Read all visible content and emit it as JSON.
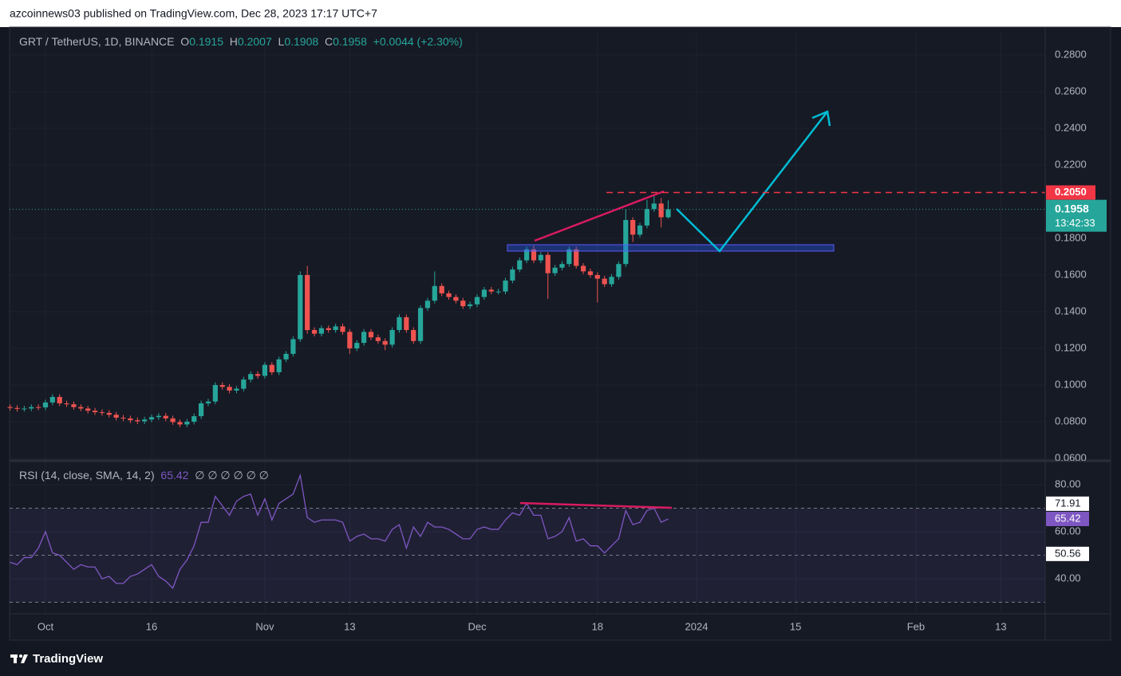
{
  "header": {
    "text": "azcoinnews03 published on TradingView.com, Dec 28, 2023 17:17 UTC+7"
  },
  "footer": {
    "brand": "TradingView"
  },
  "chart_data": [
    {
      "type": "candlestick",
      "title": "GRT / TetherUS, 1D, BINANCE",
      "legend_labels": [
        "O",
        "H",
        "L",
        "C"
      ],
      "change": "+0.0044 (+2.30%)",
      "up_color": "#26a69a",
      "down_color": "#ef5350",
      "grid": true,
      "xlim": [
        -0.07,
        146.27
      ],
      "xticks": [
        {
          "value": 5,
          "label": "Oct"
        },
        {
          "value": 20,
          "label": "16"
        },
        {
          "value": 36,
          "label": "Nov"
        },
        {
          "value": 48,
          "label": "13"
        },
        {
          "value": 66,
          "label": "Dec"
        },
        {
          "value": 83,
          "label": "18"
        },
        {
          "value": 97,
          "label": "2024"
        },
        {
          "value": 111,
          "label": "15"
        },
        {
          "value": 128,
          "label": "Feb"
        },
        {
          "value": 140,
          "label": "13"
        }
      ],
      "ylim": [
        0.0587,
        0.2926
      ],
      "yticks": [
        {
          "value": 0.28,
          "label": "0.2800"
        },
        {
          "value": 0.26,
          "label": "0.2600"
        },
        {
          "value": 0.24,
          "label": "0.2400"
        },
        {
          "value": 0.22,
          "label": "0.2200"
        },
        {
          "value": 0.18,
          "label": "0.1800"
        },
        {
          "value": 0.16,
          "label": "0.1600"
        },
        {
          "value": 0.14,
          "label": "0.1400"
        },
        {
          "value": 0.12,
          "label": "0.1200"
        },
        {
          "value": 0.1,
          "label": "0.1000"
        },
        {
          "value": 0.08,
          "label": "0.0800"
        },
        {
          "value": 0.06,
          "label": "0.0600"
        }
      ],
      "resistance": {
        "value": 0.205,
        "label": "0.2050"
      },
      "countdown": "13:42:33",
      "open": [
        0.088,
        0.0875,
        0.087,
        0.0872,
        0.088,
        0.0878,
        0.0905,
        0.0935,
        0.09,
        0.0895,
        0.088,
        0.0872,
        0.086,
        0.0852,
        0.0848,
        0.0838,
        0.0822,
        0.0818,
        0.0808,
        0.0802,
        0.0812,
        0.0825,
        0.0832,
        0.0818,
        0.0798,
        0.0785,
        0.08,
        0.083,
        0.09,
        0.091,
        0.1,
        0.099,
        0.097,
        0.098,
        0.103,
        0.106,
        0.105,
        0.111,
        0.107,
        0.114,
        0.117,
        0.125,
        0.16,
        0.13,
        0.128,
        0.131,
        0.13,
        0.132,
        0.129,
        0.12,
        0.123,
        0.129,
        0.126,
        0.124,
        0.122,
        0.13,
        0.137,
        0.13,
        0.124,
        0.142,
        0.146,
        0.154,
        0.15,
        0.148,
        0.146,
        0.143,
        0.144,
        0.148,
        0.152,
        0.151,
        0.151,
        0.157,
        0.163,
        0.168,
        0.174,
        0.168,
        0.171,
        0.161,
        0.164,
        0.166,
        0.174,
        0.165,
        0.162,
        0.16,
        0.158,
        0.155,
        0.159,
        0.166,
        0.19,
        0.182,
        0.187,
        0.196,
        0.199,
        0.1915
      ],
      "high": [
        0.0895,
        0.089,
        0.0887,
        0.0895,
        0.0895,
        0.092,
        0.095,
        0.095,
        0.0915,
        0.091,
        0.0895,
        0.0887,
        0.0875,
        0.0867,
        0.0863,
        0.0853,
        0.0837,
        0.0833,
        0.0823,
        0.0827,
        0.084,
        0.0847,
        0.0847,
        0.0833,
        0.0813,
        0.0815,
        0.0845,
        0.0915,
        0.0925,
        0.1015,
        0.1015,
        0.1005,
        0.0995,
        0.1045,
        0.1075,
        0.1075,
        0.1125,
        0.1125,
        0.1155,
        0.1185,
        0.1265,
        0.162,
        0.165,
        0.1315,
        0.1325,
        0.1325,
        0.1335,
        0.1335,
        0.1305,
        0.1245,
        0.1305,
        0.1305,
        0.1275,
        0.1255,
        0.1315,
        0.1385,
        0.1385,
        0.1315,
        0.1435,
        0.1475,
        0.162,
        0.1555,
        0.1515,
        0.1495,
        0.1475,
        0.1455,
        0.1495,
        0.1535,
        0.1535,
        0.1525,
        0.1585,
        0.1645,
        0.1695,
        0.1755,
        0.176,
        0.1725,
        0.1725,
        0.1655,
        0.1675,
        0.1755,
        0.1755,
        0.1665,
        0.1635,
        0.1615,
        0.1595,
        0.1605,
        0.1675,
        0.196,
        0.1915,
        0.1885,
        0.201,
        0.204,
        0.202,
        0.2007
      ],
      "low": [
        0.086,
        0.0855,
        0.0855,
        0.0857,
        0.0863,
        0.0863,
        0.089,
        0.0885,
        0.088,
        0.0865,
        0.0857,
        0.0845,
        0.0837,
        0.0833,
        0.0823,
        0.0807,
        0.0803,
        0.0793,
        0.0787,
        0.0787,
        0.0797,
        0.081,
        0.0803,
        0.0783,
        0.077,
        0.077,
        0.0785,
        0.0815,
        0.0885,
        0.0895,
        0.0975,
        0.0955,
        0.0955,
        0.0965,
        0.1015,
        0.1035,
        0.1035,
        0.1055,
        0.1055,
        0.1125,
        0.1155,
        0.1235,
        0.128,
        0.1265,
        0.1265,
        0.1285,
        0.1285,
        0.1275,
        0.117,
        0.1185,
        0.1215,
        0.1245,
        0.1225,
        0.119,
        0.1205,
        0.1285,
        0.1285,
        0.1225,
        0.1225,
        0.1405,
        0.1445,
        0.1485,
        0.1465,
        0.1445,
        0.1415,
        0.1415,
        0.1425,
        0.1465,
        0.1495,
        0.1495,
        0.1495,
        0.1555,
        0.1615,
        0.1665,
        0.1665,
        0.1665,
        0.147,
        0.1595,
        0.1625,
        0.1645,
        0.1635,
        0.1605,
        0.1585,
        0.145,
        0.1535,
        0.1535,
        0.1575,
        0.1645,
        0.178,
        0.1805,
        0.1855,
        0.1945,
        0.186,
        0.1908
      ],
      "close": [
        0.0875,
        0.087,
        0.0872,
        0.088,
        0.0878,
        0.0905,
        0.0935,
        0.09,
        0.0895,
        0.088,
        0.0872,
        0.086,
        0.0852,
        0.0848,
        0.0838,
        0.0822,
        0.0818,
        0.0808,
        0.0802,
        0.0812,
        0.0825,
        0.0832,
        0.0818,
        0.0798,
        0.0785,
        0.08,
        0.083,
        0.09,
        0.091,
        0.1,
        0.099,
        0.097,
        0.098,
        0.103,
        0.106,
        0.105,
        0.111,
        0.107,
        0.114,
        0.117,
        0.125,
        0.16,
        0.13,
        0.128,
        0.131,
        0.13,
        0.132,
        0.129,
        0.12,
        0.123,
        0.129,
        0.126,
        0.124,
        0.122,
        0.13,
        0.137,
        0.13,
        0.124,
        0.142,
        0.146,
        0.154,
        0.15,
        0.148,
        0.146,
        0.143,
        0.144,
        0.148,
        0.152,
        0.151,
        0.151,
        0.157,
        0.163,
        0.168,
        0.174,
        0.168,
        0.171,
        0.161,
        0.164,
        0.166,
        0.174,
        0.165,
        0.162,
        0.16,
        0.158,
        0.155,
        0.159,
        0.166,
        0.19,
        0.182,
        0.187,
        0.196,
        0.199,
        0.1915,
        0.1958
      ]
    },
    {
      "type": "line",
      "title": "RSI (14, close, SMA, 14, 2)",
      "placeholders": "∅ ∅ ∅ ∅ ∅ ∅",
      "color": "#7e57c2",
      "ylim": [
        25.08,
        89.49
      ],
      "yticks": [
        {
          "value": 80,
          "label": "80.00"
        },
        {
          "value": 60,
          "label": "60.00"
        },
        {
          "value": 40,
          "label": "40.00"
        }
      ],
      "bands": [
        70,
        50,
        30
      ],
      "level_labels": [
        71.91,
        50.56
      ],
      "values": [
        47,
        46,
        49,
        49,
        53,
        60,
        51,
        50,
        47,
        44,
        46,
        45,
        45,
        40,
        41,
        38,
        38,
        41,
        42,
        44,
        46,
        41,
        39,
        36,
        44,
        48,
        54,
        64,
        64,
        75,
        71,
        67,
        73,
        75,
        76,
        67,
        74,
        65,
        72,
        74,
        76,
        84,
        66,
        64,
        65,
        65,
        65,
        64,
        56,
        58,
        59,
        57,
        57,
        56,
        61,
        63,
        53,
        62,
        58,
        64,
        62,
        62,
        61,
        59,
        57,
        57,
        61,
        62,
        61,
        61,
        65,
        68,
        67,
        72,
        67,
        67,
        57,
        58,
        60,
        66,
        56,
        57,
        54,
        54,
        51,
        54,
        57,
        69,
        63,
        64,
        69,
        70,
        64,
        65.42
      ]
    }
  ]
}
